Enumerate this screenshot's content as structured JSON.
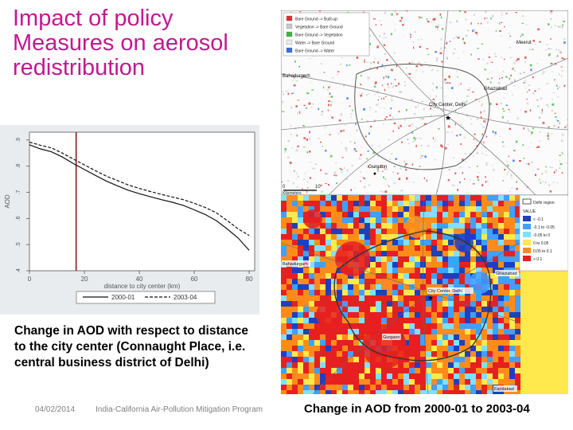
{
  "slide": {
    "title": "Impact of policy Measures on aerosol redistribution",
    "caption": "Change in AOD with respect to distance to the city center (Connaught Place, i.e. central business district of Delhi)",
    "date": "04/02/2014",
    "program": "India-California Air-Pollution Mitigation Program",
    "map_caption": "Change in AOD from 2000-01 to 2003-04"
  },
  "chart_data": {
    "type": "line",
    "title": "",
    "xlabel": "distance to city center (km)",
    "ylabel": "AOD",
    "xlim": [
      0,
      82
    ],
    "ylim": [
      0.4,
      0.93
    ],
    "x_ticks": [
      "0",
      "20",
      "40",
      "60",
      "80"
    ],
    "y_ticks": [
      ".9",
      ".8",
      ".7",
      ".6",
      ".5",
      ".4"
    ],
    "vline_x": 17,
    "series": [
      {
        "name": "2000-01",
        "style": "solid",
        "x": [
          0,
          4,
          8,
          12,
          16,
          20,
          24,
          28,
          32,
          36,
          40,
          44,
          48,
          52,
          56,
          60,
          64,
          68,
          72,
          76,
          80
        ],
        "values": [
          0.882,
          0.866,
          0.855,
          0.835,
          0.81,
          0.787,
          0.765,
          0.743,
          0.725,
          0.708,
          0.695,
          0.683,
          0.672,
          0.662,
          0.65,
          0.633,
          0.615,
          0.592,
          0.56,
          0.525,
          0.478
        ]
      },
      {
        "name": "2003-04",
        "style": "dashed",
        "x": [
          0,
          4,
          8,
          12,
          16,
          20,
          24,
          28,
          32,
          36,
          40,
          44,
          48,
          52,
          56,
          60,
          64,
          68,
          72,
          76,
          80
        ],
        "values": [
          0.892,
          0.88,
          0.87,
          0.85,
          0.827,
          0.805,
          0.783,
          0.762,
          0.745,
          0.728,
          0.715,
          0.703,
          0.692,
          0.682,
          0.672,
          0.658,
          0.642,
          0.622,
          0.592,
          0.56,
          0.535
        ]
      }
    ]
  },
  "map_top": {
    "legend": [
      {
        "label": "Bare Ground -> Built-up",
        "color": "#d7302f"
      },
      {
        "label": "Vegetation -> Bare Ground",
        "color": "#c9c9c9"
      },
      {
        "label": "Bare Ground -> Vegetation",
        "color": "#3db53d"
      },
      {
        "label": "Water -> Bare Ground",
        "color": "#e8e8e8"
      },
      {
        "label": "Bare Ground -> Water",
        "color": "#2f6fdc"
      }
    ],
    "places": [
      "Bahadurgarh",
      "Meerut",
      "Ghaziabad",
      "City Center, Delhi",
      "Gurgaon"
    ],
    "scale_labels": [
      "0",
      "10"
    ],
    "scale_unit": "Kilometers"
  },
  "map_bottom": {
    "legend_title": "VALUE",
    "legend_header": "Delhi region",
    "legend": [
      {
        "label": "< -0.1",
        "color": "#1f3fbf"
      },
      {
        "label": "-0.1 to -0.05",
        "color": "#3fa0ff"
      },
      {
        "label": "-0.05 to 0",
        "color": "#7fe0ff"
      },
      {
        "label": "0 to 0.05",
        "color": "#ffe94d"
      },
      {
        "label": "0.05 to 0.1",
        "color": "#ff8c1a"
      },
      {
        "label": "> 0.1",
        "color": "#e62020"
      }
    ],
    "places": [
      "Bahadurgarh",
      "Ghaziabad",
      "City Center, Delhi",
      "Gurgaon",
      "Faridabad"
    ]
  },
  "colors": {
    "title": "#c2188f",
    "chart_bg": "#e9ecef",
    "vline": "#8b1a1a"
  }
}
